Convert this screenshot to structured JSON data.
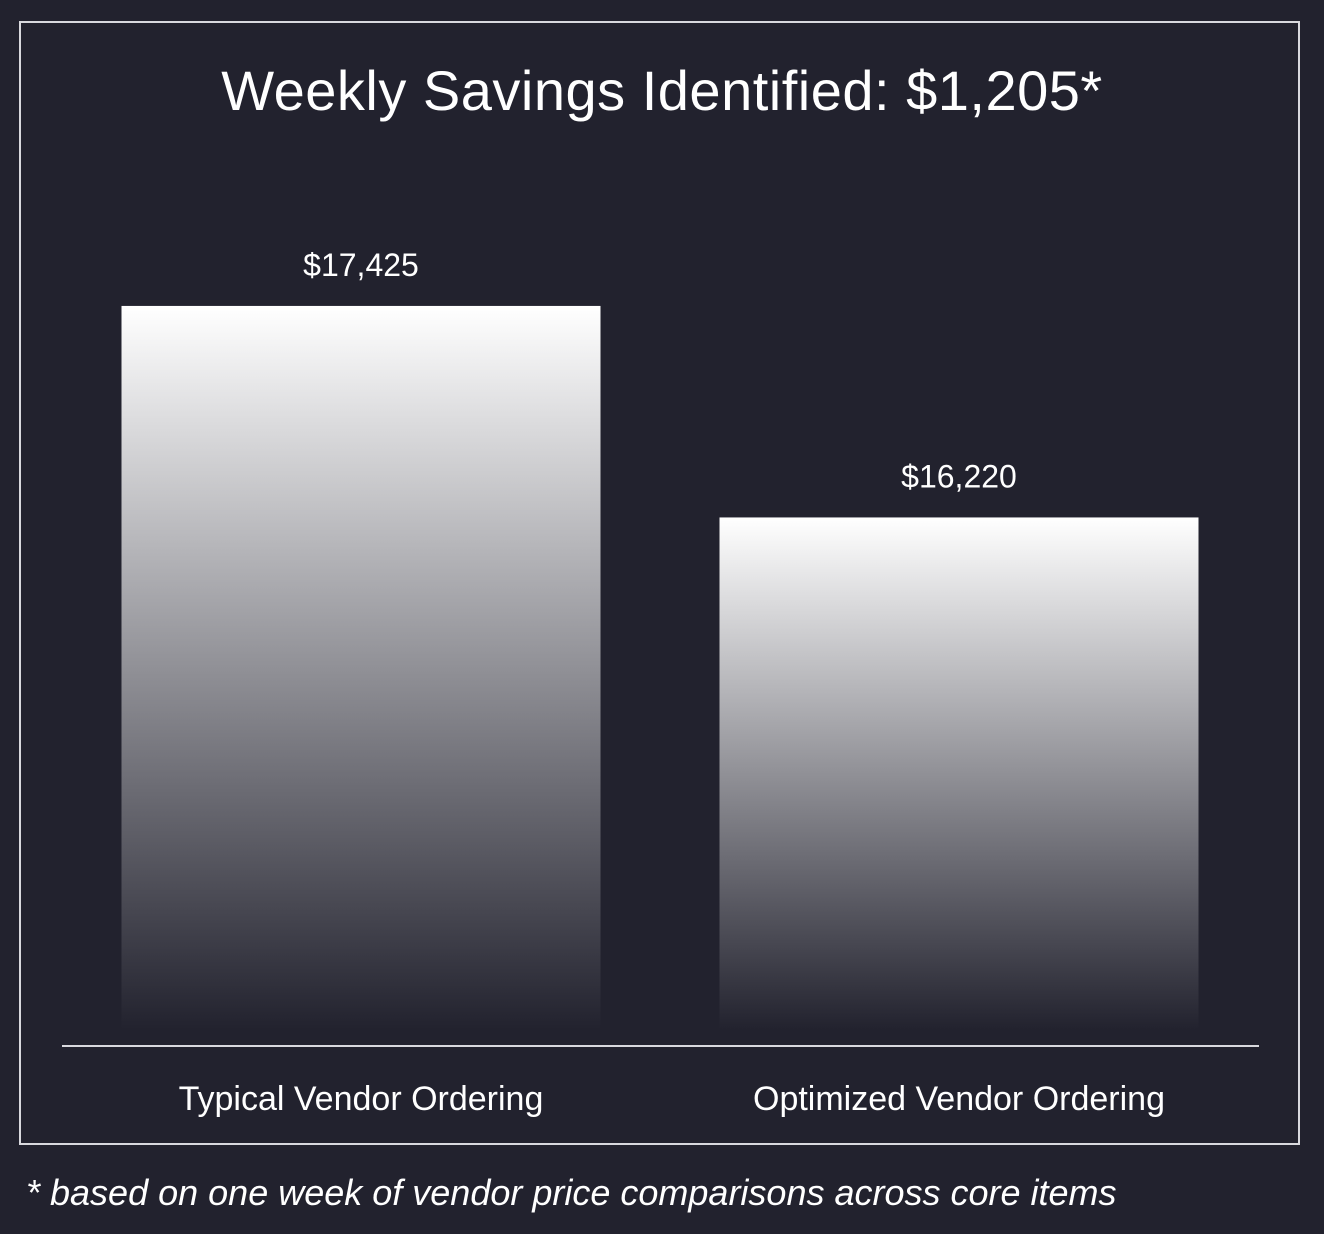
{
  "chart_data": {
    "type": "bar",
    "title": "Weekly Savings Identified: $1,205*",
    "categories": [
      "Typical Vendor Ordering",
      "Optimized Vendor Ordering"
    ],
    "values": [
      17425,
      16220
    ],
    "data_labels": [
      "$17,425",
      "$16,220"
    ],
    "ylim": [
      13300,
      18000
    ],
    "grid": false,
    "legend": "none",
    "footnote": "* based on one week of vendor price comparisons across core items"
  },
  "colors": {
    "background": "#22222e",
    "bar_top": "#ffffff",
    "bar_bottom": "#22222e",
    "axis_line": "#d9d9de",
    "text": "#ffffff"
  }
}
